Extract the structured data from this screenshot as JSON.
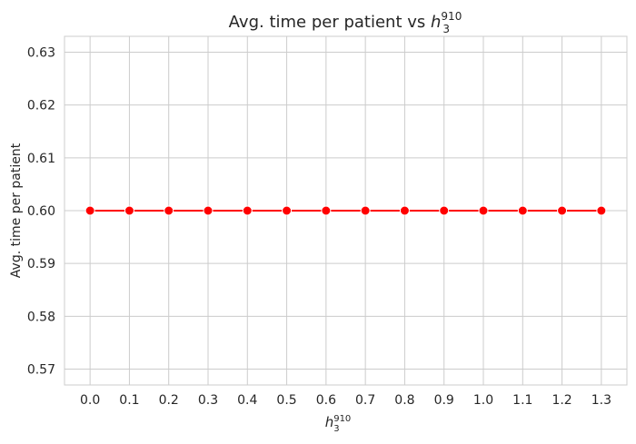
{
  "chart_data": {
    "type": "line",
    "title": {
      "prefix": "Avg. time per patient vs ",
      "var_base": "h",
      "var_sub": "3",
      "var_sup": "910"
    },
    "xlabel": {
      "var_base": "h",
      "var_sub": "3",
      "var_sup": "910"
    },
    "ylabel": "Avg. time per patient",
    "x": [
      0.0,
      0.1,
      0.2,
      0.3,
      0.4,
      0.5,
      0.6,
      0.7,
      0.8,
      0.9,
      1.0,
      1.1,
      1.2,
      1.3
    ],
    "x_tick_labels": [
      "0.0",
      "0.1",
      "0.2",
      "0.3",
      "0.4",
      "0.5",
      "0.6",
      "0.7",
      "0.8",
      "0.9",
      "1.0",
      "1.1",
      "1.2",
      "1.3"
    ],
    "series": [
      {
        "values": [
          0.6,
          0.6,
          0.6,
          0.6,
          0.6,
          0.6,
          0.6,
          0.6,
          0.6,
          0.6,
          0.6,
          0.6,
          0.6,
          0.6
        ],
        "color": "#ff0000",
        "marker": "circle"
      }
    ],
    "xlim": [
      -0.065,
      1.365
    ],
    "ylim": [
      0.567,
      0.633
    ],
    "y_ticks": [
      0.57,
      0.58,
      0.59,
      0.6,
      0.61,
      0.62,
      0.63
    ],
    "y_tick_labels": [
      "0.57",
      "0.58",
      "0.59",
      "0.60",
      "0.61",
      "0.62",
      "0.63"
    ],
    "grid": true,
    "style": {
      "grid_color": "#cccccc",
      "spine_color": "#cccccc",
      "text_color": "#262626"
    }
  }
}
